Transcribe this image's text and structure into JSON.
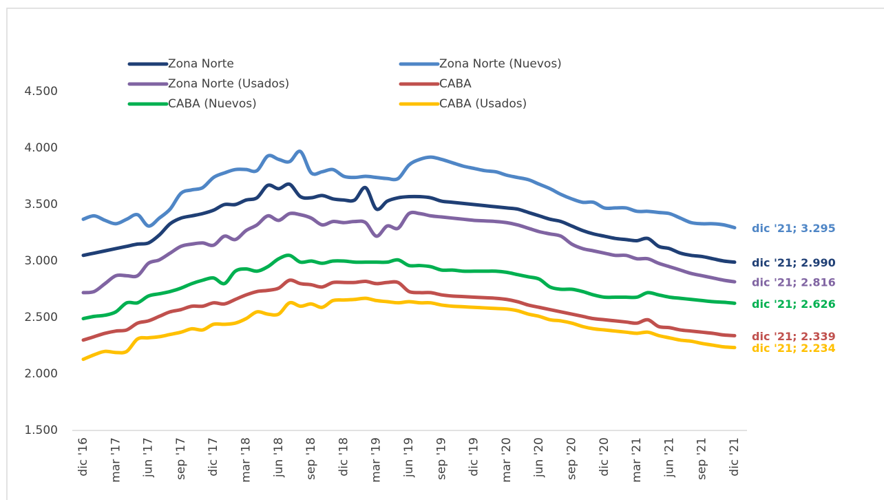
{
  "chart_data": {
    "type": "line",
    "categories": [
      "dic '16",
      null,
      null,
      "mar '17",
      null,
      null,
      "jun '17",
      null,
      null,
      "sep '17",
      null,
      null,
      "dic '17",
      null,
      null,
      "mar '18",
      null,
      null,
      "jun '18",
      null,
      null,
      "sep '18",
      null,
      null,
      "dic '18",
      null,
      null,
      "mar '19",
      null,
      null,
      "jun '19",
      null,
      null,
      "sep '19",
      null,
      null,
      "dic '19",
      null,
      null,
      "mar '20",
      null,
      null,
      "jun '20",
      null,
      null,
      "sep '20",
      null,
      null,
      "dic '20",
      null,
      null,
      "mar '21",
      null,
      null,
      "jun '21",
      null,
      null,
      "sep '21",
      null,
      null,
      "dic '21"
    ],
    "ylim": [
      1500,
      4500
    ],
    "yticks": [
      {
        "value": 1500,
        "label": "1.500"
      },
      {
        "value": 2000,
        "label": "2.000"
      },
      {
        "value": 2500,
        "label": "2.500"
      },
      {
        "value": 3000,
        "label": "3.000"
      },
      {
        "value": 3500,
        "label": "3.500"
      },
      {
        "value": 4000,
        "label": "4.000"
      },
      {
        "value": 4500,
        "label": "4.500"
      }
    ],
    "series": [
      {
        "name": "Zona Norte",
        "color": "#1f3f75",
        "values": [
          3050,
          3070,
          3090,
          3110,
          3130,
          3150,
          3160,
          3230,
          3330,
          3380,
          3400,
          3420,
          3450,
          3500,
          3500,
          3540,
          3560,
          3670,
          3640,
          3680,
          3570,
          3560,
          3580,
          3550,
          3540,
          3540,
          3650,
          3460,
          3530,
          3560,
          3570,
          3570,
          3560,
          3530,
          3520,
          3510,
          3500,
          3490,
          3480,
          3470,
          3460,
          3430,
          3400,
          3370,
          3350,
          3310,
          3270,
          3240,
          3220,
          3200,
          3190,
          3180,
          3200,
          3130,
          3110,
          3070,
          3050,
          3040,
          3020,
          3000,
          2990
        ],
        "value_labels": [
          null,
          null,
          null,
          null,
          null,
          null,
          null,
          null,
          null,
          null,
          null,
          null,
          null,
          null,
          null,
          null,
          null,
          null,
          null,
          null,
          null,
          null,
          null,
          null,
          null,
          null,
          null,
          null,
          null,
          null,
          null,
          null,
          null,
          null,
          null,
          null,
          null,
          null,
          null,
          null,
          null,
          null,
          null,
          null,
          null,
          null,
          null,
          null,
          null,
          null,
          null,
          null,
          null,
          null,
          null,
          null,
          null,
          null,
          null,
          null,
          "dic '21;  2.990"
        ]
      },
      {
        "name": "Zona Norte (Nuevos)",
        "color": "#4f86c6",
        "values": [
          3370,
          3400,
          3360,
          3330,
          3370,
          3410,
          3310,
          3380,
          3460,
          3600,
          3630,
          3650,
          3740,
          3780,
          3810,
          3810,
          3800,
          3930,
          3900,
          3880,
          3970,
          3780,
          3790,
          3810,
          3750,
          3740,
          3750,
          3740,
          3730,
          3730,
          3850,
          3900,
          3920,
          3900,
          3870,
          3840,
          3820,
          3800,
          3790,
          3760,
          3740,
          3720,
          3680,
          3640,
          3590,
          3550,
          3520,
          3520,
          3470,
          3470,
          3470,
          3440,
          3440,
          3430,
          3420,
          3380,
          3340,
          3330,
          3330,
          3320,
          3295
        ],
        "value_labels": [
          null,
          null,
          null,
          null,
          null,
          null,
          null,
          null,
          null,
          null,
          null,
          null,
          null,
          null,
          null,
          null,
          null,
          null,
          null,
          null,
          null,
          null,
          null,
          null,
          null,
          null,
          null,
          null,
          null,
          null,
          null,
          null,
          null,
          null,
          null,
          null,
          null,
          null,
          null,
          null,
          null,
          null,
          null,
          null,
          null,
          null,
          null,
          null,
          null,
          null,
          null,
          null,
          null,
          null,
          null,
          null,
          null,
          null,
          null,
          null,
          "dic '21;  3.295"
        ]
      },
      {
        "name": "Zona Norte (Usados)",
        "color": "#8064a2",
        "values": [
          2720,
          2730,
          2800,
          2870,
          2870,
          2870,
          2980,
          3010,
          3070,
          3130,
          3150,
          3160,
          3140,
          3220,
          3190,
          3270,
          3320,
          3400,
          3360,
          3420,
          3410,
          3380,
          3320,
          3350,
          3340,
          3350,
          3340,
          3220,
          3310,
          3290,
          3420,
          3420,
          3400,
          3390,
          3380,
          3370,
          3360,
          3355,
          3350,
          3340,
          3320,
          3290,
          3260,
          3240,
          3220,
          3150,
          3110,
          3090,
          3070,
          3050,
          3050,
          3020,
          3020,
          2980,
          2950,
          2920,
          2890,
          2870,
          2850,
          2830,
          2816
        ],
        "value_labels": [
          null,
          null,
          null,
          null,
          null,
          null,
          null,
          null,
          null,
          null,
          null,
          null,
          null,
          null,
          null,
          null,
          null,
          null,
          null,
          null,
          null,
          null,
          null,
          null,
          null,
          null,
          null,
          null,
          null,
          null,
          null,
          null,
          null,
          null,
          null,
          null,
          null,
          null,
          null,
          null,
          null,
          null,
          null,
          null,
          null,
          null,
          null,
          null,
          null,
          null,
          null,
          null,
          null,
          null,
          null,
          null,
          null,
          null,
          null,
          null,
          "dic '21;  2.816"
        ]
      },
      {
        "name": "CABA",
        "color": "#c0504d",
        "values": [
          2300,
          2330,
          2360,
          2380,
          2390,
          2450,
          2470,
          2510,
          2550,
          2570,
          2600,
          2600,
          2630,
          2620,
          2660,
          2700,
          2730,
          2740,
          2760,
          2830,
          2800,
          2790,
          2770,
          2810,
          2810,
          2810,
          2820,
          2800,
          2810,
          2810,
          2730,
          2720,
          2720,
          2700,
          2690,
          2685,
          2680,
          2675,
          2670,
          2660,
          2640,
          2610,
          2590,
          2570,
          2550,
          2530,
          2510,
          2490,
          2480,
          2470,
          2460,
          2450,
          2480,
          2420,
          2410,
          2390,
          2380,
          2370,
          2360,
          2345,
          2339
        ],
        "value_labels": [
          null,
          null,
          null,
          null,
          null,
          null,
          null,
          null,
          null,
          null,
          null,
          null,
          null,
          null,
          null,
          null,
          null,
          null,
          null,
          null,
          null,
          null,
          null,
          null,
          null,
          null,
          null,
          null,
          null,
          null,
          null,
          null,
          null,
          null,
          null,
          null,
          null,
          null,
          null,
          null,
          null,
          null,
          null,
          null,
          null,
          null,
          null,
          null,
          null,
          null,
          null,
          null,
          null,
          null,
          null,
          null,
          null,
          null,
          null,
          null,
          "dic '21;  2.339"
        ]
      },
      {
        "name": "CABA  (Nuevos)",
        "color": "#00b050",
        "values": [
          2490,
          2510,
          2520,
          2550,
          2630,
          2630,
          2690,
          2710,
          2730,
          2760,
          2800,
          2830,
          2850,
          2800,
          2910,
          2930,
          2910,
          2950,
          3020,
          3050,
          2990,
          3000,
          2980,
          3000,
          3000,
          2990,
          2990,
          2990,
          2990,
          3010,
          2960,
          2960,
          2950,
          2920,
          2920,
          2910,
          2910,
          2910,
          2910,
          2900,
          2880,
          2860,
          2840,
          2770,
          2750,
          2750,
          2730,
          2700,
          2680,
          2680,
          2680,
          2680,
          2720,
          2700,
          2680,
          2670,
          2660,
          2650,
          2640,
          2635,
          2626
        ],
        "value_labels": [
          null,
          null,
          null,
          null,
          null,
          null,
          null,
          null,
          null,
          null,
          null,
          null,
          null,
          null,
          null,
          null,
          null,
          null,
          null,
          null,
          null,
          null,
          null,
          null,
          null,
          null,
          null,
          null,
          null,
          null,
          null,
          null,
          null,
          null,
          null,
          null,
          null,
          null,
          null,
          null,
          null,
          null,
          null,
          null,
          null,
          null,
          null,
          null,
          null,
          null,
          null,
          null,
          null,
          null,
          null,
          null,
          null,
          null,
          null,
          null,
          "dic '21;  2.626"
        ]
      },
      {
        "name": "CABA  (Usados)",
        "color": "#ffc000",
        "values": [
          2130,
          2170,
          2200,
          2190,
          2200,
          2310,
          2320,
          2330,
          2350,
          2370,
          2400,
          2390,
          2440,
          2440,
          2450,
          2490,
          2550,
          2530,
          2530,
          2630,
          2600,
          2620,
          2590,
          2650,
          2655,
          2660,
          2670,
          2650,
          2640,
          2630,
          2640,
          2630,
          2630,
          2610,
          2600,
          2595,
          2590,
          2585,
          2580,
          2575,
          2560,
          2530,
          2510,
          2480,
          2470,
          2450,
          2420,
          2400,
          2390,
          2380,
          2370,
          2360,
          2370,
          2340,
          2320,
          2300,
          2290,
          2270,
          2255,
          2240,
          2234
        ],
        "value_labels": [
          null,
          null,
          null,
          null,
          null,
          null,
          null,
          null,
          null,
          null,
          null,
          null,
          null,
          null,
          null,
          null,
          null,
          null,
          null,
          null,
          null,
          null,
          null,
          null,
          null,
          null,
          null,
          null,
          null,
          null,
          null,
          null,
          null,
          null,
          null,
          null,
          null,
          null,
          null,
          null,
          null,
          null,
          null,
          null,
          null,
          null,
          null,
          null,
          null,
          null,
          null,
          null,
          null,
          null,
          null,
          null,
          null,
          null,
          null,
          null,
          "dic '21;  2.234"
        ]
      }
    ]
  }
}
